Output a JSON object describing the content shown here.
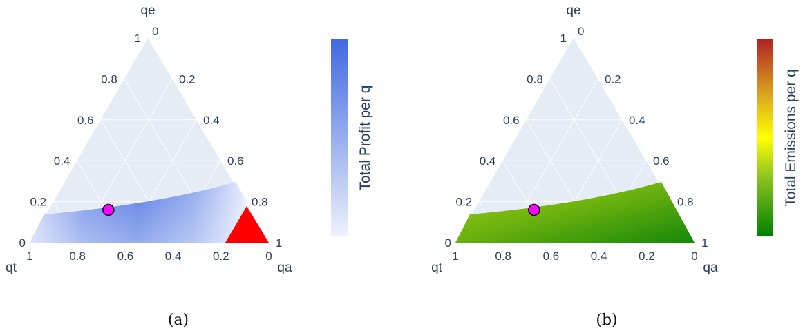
{
  "chart_data": [
    {
      "type": "ternary",
      "panel_label": "(a)",
      "axes": {
        "a": {
          "title": "qe",
          "ticks": [
            "0.2",
            "0.4",
            "0.6",
            "0.8",
            "1"
          ],
          "end_label": "0"
        },
        "b": {
          "title": "qt",
          "ticks": [
            "1",
            "0.8",
            "0.6",
            "0.4",
            "0.2"
          ],
          "end_label": "0"
        },
        "c": {
          "title": "qa",
          "ticks": [
            "0.2",
            "0.4",
            "0.6",
            "0.8",
            "1"
          ],
          "end_label": "0"
        }
      },
      "colorbar": {
        "title": "Total Profit per q",
        "colors": [
          "#eef2fc",
          "#4169e1"
        ]
      },
      "feasible_region": {
        "qe_max_at_qa0": 0.17,
        "qe_max_at_qa085": 0.25,
        "qa_max": 0.86
      },
      "infeasible_region": {
        "color": "#ff0000",
        "qa_min": 0.84
      },
      "marker": {
        "qt": 0.59,
        "qe": 0.16,
        "qa": 0.25,
        "color": "#ff00ff"
      }
    },
    {
      "type": "ternary",
      "panel_label": "(b)",
      "axes": {
        "a": {
          "title": "qe",
          "ticks": [
            "0.2",
            "0.4",
            "0.6",
            "0.8",
            "1"
          ],
          "end_label": "0"
        },
        "b": {
          "title": "qt",
          "ticks": [
            "1",
            "0.8",
            "0.6",
            "0.4",
            "0.2"
          ],
          "end_label": "0"
        },
        "c": {
          "title": "qa",
          "ticks": [
            "0.2",
            "0.4",
            "0.6",
            "0.8",
            "1"
          ],
          "end_label": "0"
        }
      },
      "colorbar": {
        "title": "Total Emissions per q",
        "colors": [
          "#008000",
          "#9acd32",
          "#ffff00",
          "#daa520",
          "#b22222"
        ]
      },
      "feasible_region": {
        "qe_max_at_qa0": 0.17,
        "qe_max_at_qa085": 0.25,
        "qa_max": 1.0
      },
      "marker": {
        "qt": 0.59,
        "qe": 0.16,
        "qa": 0.25,
        "color": "#ff00ff"
      }
    }
  ]
}
